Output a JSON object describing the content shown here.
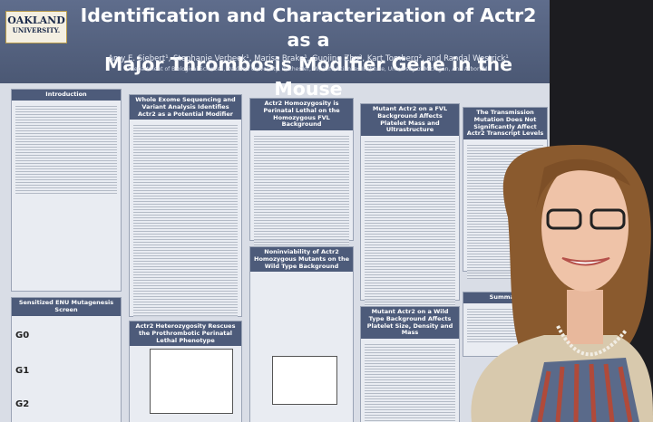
{
  "logo": {
    "line1": "OAKLAND",
    "line2": "UNIVERSITY."
  },
  "poster": {
    "title_line1": "Identification and Characterization of Actr2 as a",
    "title_line2": "Major Thrombosis Modifier Gene in the Mouse",
    "authors": "Amy E. Siebert¹, Stephanie Verbeek¹, Marisa Brake¹, Guojing Zhu², Kart Tomberg², and Randal Westrick¹",
    "affiliations": "¹Department of Biological Sciences, Oakland University, Rochester, MI, ²Life Sciences Institute, University of Michigan, Ann Arbor, MI",
    "sections": [
      "Introduction",
      "Sensitized ENU Mutagenesis Screen",
      "Whole Exome Sequencing and Variant Analysis Identifies Actr2 as a Potential Modifier",
      "Actr2 Heterozygosity Rescues the Prothrombotic Perinatal Lethal Phenotype",
      "Actr2 Homozygosity is Perinatal Lethal on the Homozygous FVL Background",
      "Noninviability of Actr2 Homozygous Mutants on the Wild Type Background",
      "Mutant Actr2 on a FVL Background Affects Platelet Mass and Ultrastructure",
      "Mutant Actr2 on a Wild Type Background Affects Platelet Size, Density and Mass",
      "The Transmission Mutation Does Not Significantly Affect Actr2 Transcript Levels",
      "Summary"
    ],
    "screen_rows": [
      "G0",
      "G1",
      "G2"
    ]
  }
}
